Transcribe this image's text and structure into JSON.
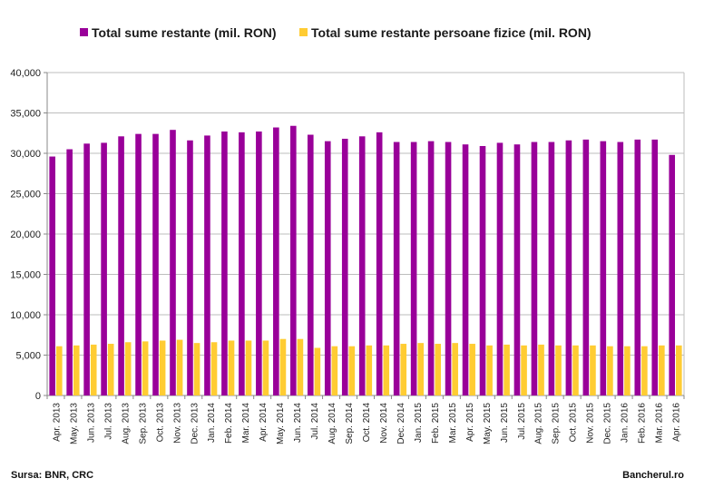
{
  "chart_data": {
    "type": "bar",
    "categories": [
      "Apr. 2013",
      "May. 2013",
      "Jun. 2013",
      "Jul. 2013",
      "Aug. 2013",
      "Sep. 2013",
      "Oct. 2013",
      "Nov. 2013",
      "Dec. 2013",
      "Jan. 2014",
      "Feb. 2014",
      "Mar. 2014",
      "Apr. 2014",
      "May. 2014",
      "Jun. 2014",
      "Jul. 2014",
      "Aug. 2014",
      "Sep. 2014",
      "Oct. 2014",
      "Nov. 2014",
      "Dec. 2014",
      "Jan. 2015",
      "Feb. 2015",
      "Mar. 2015",
      "Apr. 2015",
      "May. 2015",
      "Jun. 2015",
      "Jul. 2015",
      "Aug. 2015",
      "Sep. 2015",
      "Oct. 2015",
      "Nov. 2015",
      "Dec. 2015",
      "Jan. 2016",
      "Feb. 2016",
      "Mar. 2016",
      "Apr. 2016"
    ],
    "series": [
      {
        "name": "Total sume restante (mil. RON)",
        "color": "#990099",
        "values": [
          29600,
          30500,
          31200,
          31300,
          32100,
          32400,
          32400,
          32900,
          31600,
          32200,
          32700,
          32600,
          32700,
          33200,
          33400,
          32300,
          31500,
          31800,
          32100,
          32600,
          31400,
          31400,
          31500,
          31400,
          31100,
          30900,
          31300,
          31100,
          31400,
          31400,
          31600,
          31700,
          31500,
          31400,
          31700,
          31700,
          29800
        ]
      },
      {
        "name": "Total sume restante persoane fizice (mil. RON)",
        "color": "#ffcc33",
        "values": [
          6100,
          6200,
          6300,
          6400,
          6600,
          6700,
          6800,
          6900,
          6500,
          6600,
          6800,
          6800,
          6800,
          7000,
          7000,
          5900,
          6100,
          6100,
          6200,
          6200,
          6400,
          6500,
          6400,
          6500,
          6400,
          6200,
          6300,
          6200,
          6300,
          6200,
          6200,
          6200,
          6100,
          6100,
          6100,
          6200,
          6200
        ]
      }
    ],
    "ylim": [
      0,
      40000
    ],
    "yticks": [
      "0",
      "5,000",
      "10,000",
      "15,000",
      "20,000",
      "25,000",
      "30,000",
      "35,000",
      "40,000"
    ],
    "grid": true,
    "legend_position": "top"
  },
  "footer": {
    "source": "Sursa: BNR, CRC",
    "brand": "Bancherul.ro"
  }
}
